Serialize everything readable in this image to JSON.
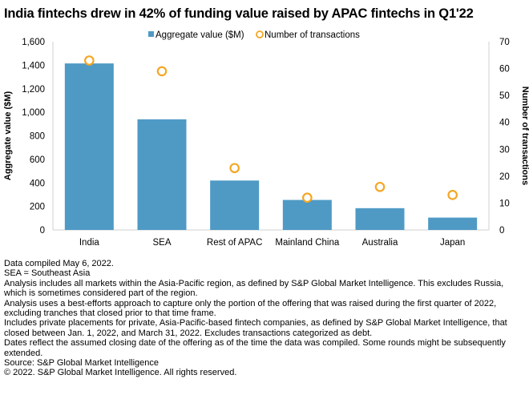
{
  "title": "India fintechs drew in 42% of funding value raised by APAC fintechs in Q1'22",
  "chart_data": {
    "type": "bar",
    "title": "India fintechs drew in 42% of funding value raised by APAC fintechs in Q1'22",
    "categories": [
      "India",
      "SEA",
      "Rest of APAC",
      "Mainland China",
      "Australia",
      "Japan"
    ],
    "series": [
      {
        "name": "Aggregate value ($M)",
        "type": "bar",
        "axis": "left",
        "color": "#4f9ac5",
        "values": [
          1415,
          940,
          420,
          255,
          185,
          105
        ]
      },
      {
        "name": "Number of transactions",
        "type": "scatter",
        "axis": "right",
        "color": "#f5a623",
        "values": [
          63,
          59,
          23,
          12,
          16,
          13
        ]
      }
    ],
    "ylabel": "Aggregate value ($M)",
    "ylim": [
      0,
      1600
    ],
    "yticks": [
      "0",
      "200",
      "400",
      "600",
      "800",
      "1,000",
      "1,200",
      "1,400",
      "1,600"
    ],
    "y2label": "Number of transactions",
    "y2lim": [
      0,
      70
    ],
    "y2ticks": [
      "0",
      "10",
      "20",
      "30",
      "40",
      "50",
      "60",
      "70"
    ],
    "legend": "top-center",
    "grid": false
  },
  "notes": [
    "Data compiled May 6, 2022.",
    "SEA = Southeast Asia",
    "Analysis includes all markets within the Asia-Pacific region, as defined by S&P Global Market Intelligence. This excludes Russia, which is sometimes considered part of the region.",
    "Analysis uses a best-efforts approach to capture only the portion of the offering that was raised during the first quarter of 2022, excluding tranches that closed prior to that time frame.",
    "Includes private placements for private, Asia-Pacific-based fintech companies, as defined by S&P Global Market Intelligence, that closed between Jan. 1, 2022, and March 31, 2022. Excludes transactions categorized as debt.",
    "Dates reflect the assumed closing date of the offering as of the time the data was compiled. Some rounds might be subsequently extended.",
    "Source: S&P Global Market Intelligence",
    "© 2022. S&P Global Market Intelligence. All rights reserved."
  ]
}
